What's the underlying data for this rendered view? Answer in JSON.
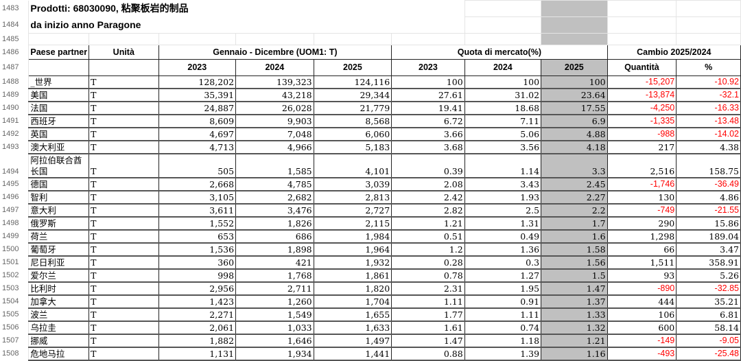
{
  "title": "Prodotti: 68030090, 粘聚板岩的制品",
  "subtitle": "da inizio anno Paragone",
  "row_numbers": [
    "1483",
    "1484",
    "1485",
    "1486",
    "1487"
  ],
  "headers": {
    "partner": "Paese partner",
    "unit": "Unità",
    "period": "Gennaio - Dicembre (UOM1: T)",
    "share": "Quota di mercato(%)",
    "change": "Cambio 2025/2024",
    "years": [
      "2023",
      "2024",
      "2025"
    ],
    "change_qty": "Quantità",
    "change_pct": "%"
  },
  "highlight_color": "#c0c0c0",
  "negative_color": "#ff0000",
  "rows": [
    {
      "rn": "1488",
      "country": "_世界",
      "unit": "T",
      "q2023": "128,202",
      "q2024": "139,323",
      "q2025": "124,116",
      "s2023": "100",
      "s2024": "100",
      "s2025": "100",
      "dq": "-15,207",
      "dp": "-10.92"
    },
    {
      "rn": "1489",
      "country": "美国",
      "unit": "T",
      "q2023": "35,391",
      "q2024": "43,218",
      "q2025": "29,344",
      "s2023": "27.61",
      "s2024": "31.02",
      "s2025": "23.64",
      "dq": "-13,874",
      "dp": "-32.1"
    },
    {
      "rn": "1490",
      "country": "法国",
      "unit": "T",
      "q2023": "24,887",
      "q2024": "26,028",
      "q2025": "21,779",
      "s2023": "19.41",
      "s2024": "18.68",
      "s2025": "17.55",
      "dq": "-4,250",
      "dp": "-16.33"
    },
    {
      "rn": "1491",
      "country": "西班牙",
      "unit": "T",
      "q2023": "8,609",
      "q2024": "9,903",
      "q2025": "8,568",
      "s2023": "6.72",
      "s2024": "7.11",
      "s2025": "6.9",
      "dq": "-1,335",
      "dp": "-13.48"
    },
    {
      "rn": "1492",
      "country": "英国",
      "unit": "T",
      "q2023": "4,697",
      "q2024": "7,048",
      "q2025": "6,060",
      "s2023": "3.66",
      "s2024": "5.06",
      "s2025": "4.88",
      "dq": "-988",
      "dp": "-14.02"
    },
    {
      "rn": "1493",
      "country": "澳大利亚",
      "unit": "T",
      "q2023": "4,713",
      "q2024": "4,966",
      "q2025": "5,183",
      "s2023": "3.68",
      "s2024": "3.56",
      "s2025": "4.18",
      "dq": "217",
      "dp": "4.38"
    },
    {
      "rn": "1494",
      "country": "阿拉伯联合酋长国",
      "unit": "T",
      "q2023": "505",
      "q2024": "1,585",
      "q2025": "4,101",
      "s2023": "0.39",
      "s2024": "1.14",
      "s2025": "3.3",
      "dq": "2,516",
      "dp": "158.75"
    },
    {
      "rn": "1495",
      "country": "德国",
      "unit": "T",
      "q2023": "2,668",
      "q2024": "4,785",
      "q2025": "3,039",
      "s2023": "2.08",
      "s2024": "3.43",
      "s2025": "2.45",
      "dq": "-1,746",
      "dp": "-36.49"
    },
    {
      "rn": "1496",
      "country": "智利",
      "unit": "T",
      "q2023": "3,105",
      "q2024": "2,682",
      "q2025": "2,813",
      "s2023": "2.42",
      "s2024": "1.93",
      "s2025": "2.27",
      "dq": "130",
      "dp": "4.86"
    },
    {
      "rn": "1497",
      "country": "意大利",
      "unit": "T",
      "q2023": "3,611",
      "q2024": "3,476",
      "q2025": "2,727",
      "s2023": "2.82",
      "s2024": "2.5",
      "s2025": "2.2",
      "dq": "-749",
      "dp": "-21.55"
    },
    {
      "rn": "1498",
      "country": "俄罗斯",
      "unit": "T",
      "q2023": "1,552",
      "q2024": "1,826",
      "q2025": "2,115",
      "s2023": "1.21",
      "s2024": "1.31",
      "s2025": "1.7",
      "dq": "290",
      "dp": "15.86"
    },
    {
      "rn": "1499",
      "country": "荷兰",
      "unit": "T",
      "q2023": "653",
      "q2024": "686",
      "q2025": "1,984",
      "s2023": "0.51",
      "s2024": "0.49",
      "s2025": "1.6",
      "dq": "1,298",
      "dp": "189.04"
    },
    {
      "rn": "1500",
      "country": "葡萄牙",
      "unit": "T",
      "q2023": "1,536",
      "q2024": "1,898",
      "q2025": "1,964",
      "s2023": "1.2",
      "s2024": "1.36",
      "s2025": "1.58",
      "dq": "66",
      "dp": "3.47"
    },
    {
      "rn": "1501",
      "country": "尼日利亚",
      "unit": "T",
      "q2023": "360",
      "q2024": "421",
      "q2025": "1,932",
      "s2023": "0.28",
      "s2024": "0.3",
      "s2025": "1.56",
      "dq": "1,511",
      "dp": "358.91"
    },
    {
      "rn": "1502",
      "country": "爱尔兰",
      "unit": "T",
      "q2023": "998",
      "q2024": "1,768",
      "q2025": "1,861",
      "s2023": "0.78",
      "s2024": "1.27",
      "s2025": "1.5",
      "dq": "93",
      "dp": "5.26"
    },
    {
      "rn": "1503",
      "country": "比利时",
      "unit": "T",
      "q2023": "2,956",
      "q2024": "2,711",
      "q2025": "1,820",
      "s2023": "2.31",
      "s2024": "1.95",
      "s2025": "1.47",
      "dq": "-890",
      "dp": "-32.85"
    },
    {
      "rn": "1504",
      "country": "加拿大",
      "unit": "T",
      "q2023": "1,423",
      "q2024": "1,260",
      "q2025": "1,704",
      "s2023": "1.11",
      "s2024": "0.91",
      "s2025": "1.37",
      "dq": "444",
      "dp": "35.21"
    },
    {
      "rn": "1505",
      "country": "波兰",
      "unit": "T",
      "q2023": "2,271",
      "q2024": "1,549",
      "q2025": "1,655",
      "s2023": "1.77",
      "s2024": "1.11",
      "s2025": "1.33",
      "dq": "106",
      "dp": "6.81"
    },
    {
      "rn": "1506",
      "country": "乌拉圭",
      "unit": "T",
      "q2023": "2,061",
      "q2024": "1,033",
      "q2025": "1,633",
      "s2023": "1.61",
      "s2024": "0.74",
      "s2025": "1.32",
      "dq": "600",
      "dp": "58.14"
    },
    {
      "rn": "1507",
      "country": "挪威",
      "unit": "T",
      "q2023": "1,882",
      "q2024": "1,646",
      "q2025": "1,497",
      "s2023": "1.47",
      "s2024": "1.18",
      "s2025": "1.21",
      "dq": "-149",
      "dp": "-9.05"
    },
    {
      "rn": "1508",
      "country": "危地马拉",
      "unit": "T",
      "q2023": "1,131",
      "q2024": "1,934",
      "q2025": "1,441",
      "s2023": "0.88",
      "s2024": "1.39",
      "s2025": "1.16",
      "dq": "-493",
      "dp": "-25.48"
    }
  ]
}
